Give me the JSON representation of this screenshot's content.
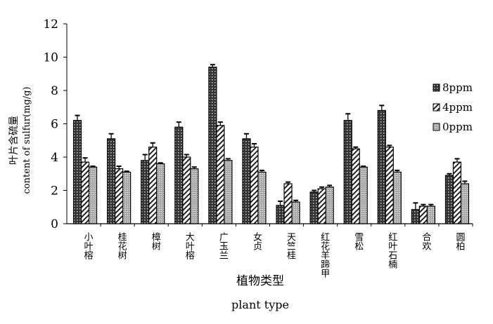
{
  "chart_data": {
    "type": "bar",
    "title": "",
    "ylabel": "叶片含硫量",
    "ylabel2": "content of sulfur(mg/g)",
    "xlabel": "植物类型",
    "xlabel2": "plant type",
    "ylim": [
      0,
      12
    ],
    "yticks": [
      0,
      2,
      4,
      6,
      8,
      10,
      12
    ],
    "grid": false,
    "legend_position": "right",
    "categories": [
      "小叶榕",
      "桂花树",
      "樟树",
      "大叶榕",
      "广玉兰",
      "女贞",
      "天竺桂",
      "红花羊蹄甲",
      "雪松",
      "红叶石楠",
      "合欢",
      "圆柏"
    ],
    "series": [
      {
        "name": "8ppm",
        "pattern": "dark-crosshatch",
        "values": [
          6.2,
          5.1,
          3.8,
          5.8,
          9.4,
          5.1,
          1.1,
          1.9,
          6.2,
          6.8,
          0.85,
          2.9
        ],
        "errors": [
          0.3,
          0.3,
          0.35,
          0.3,
          0.15,
          0.3,
          0.25,
          0.1,
          0.4,
          0.3,
          0.4,
          0.1
        ]
      },
      {
        "name": "4ppm",
        "pattern": "diagonal-stripes",
        "values": [
          3.7,
          3.3,
          4.6,
          4.0,
          5.9,
          4.6,
          2.4,
          2.1,
          4.5,
          4.6,
          1.05,
          3.7
        ],
        "errors": [
          0.25,
          0.15,
          0.25,
          0.15,
          0.2,
          0.2,
          0.1,
          0.1,
          0.1,
          0.1,
          0.1,
          0.2
        ]
      },
      {
        "name": "0ppm",
        "pattern": "light-dots",
        "values": [
          3.4,
          3.1,
          3.6,
          3.3,
          3.8,
          3.1,
          1.3,
          2.2,
          3.4,
          3.1,
          1.05,
          2.4
        ],
        "errors": [
          0.05,
          0.05,
          0.05,
          0.1,
          0.1,
          0.1,
          0.1,
          0.1,
          0.05,
          0.1,
          0.1,
          0.15
        ]
      }
    ]
  }
}
